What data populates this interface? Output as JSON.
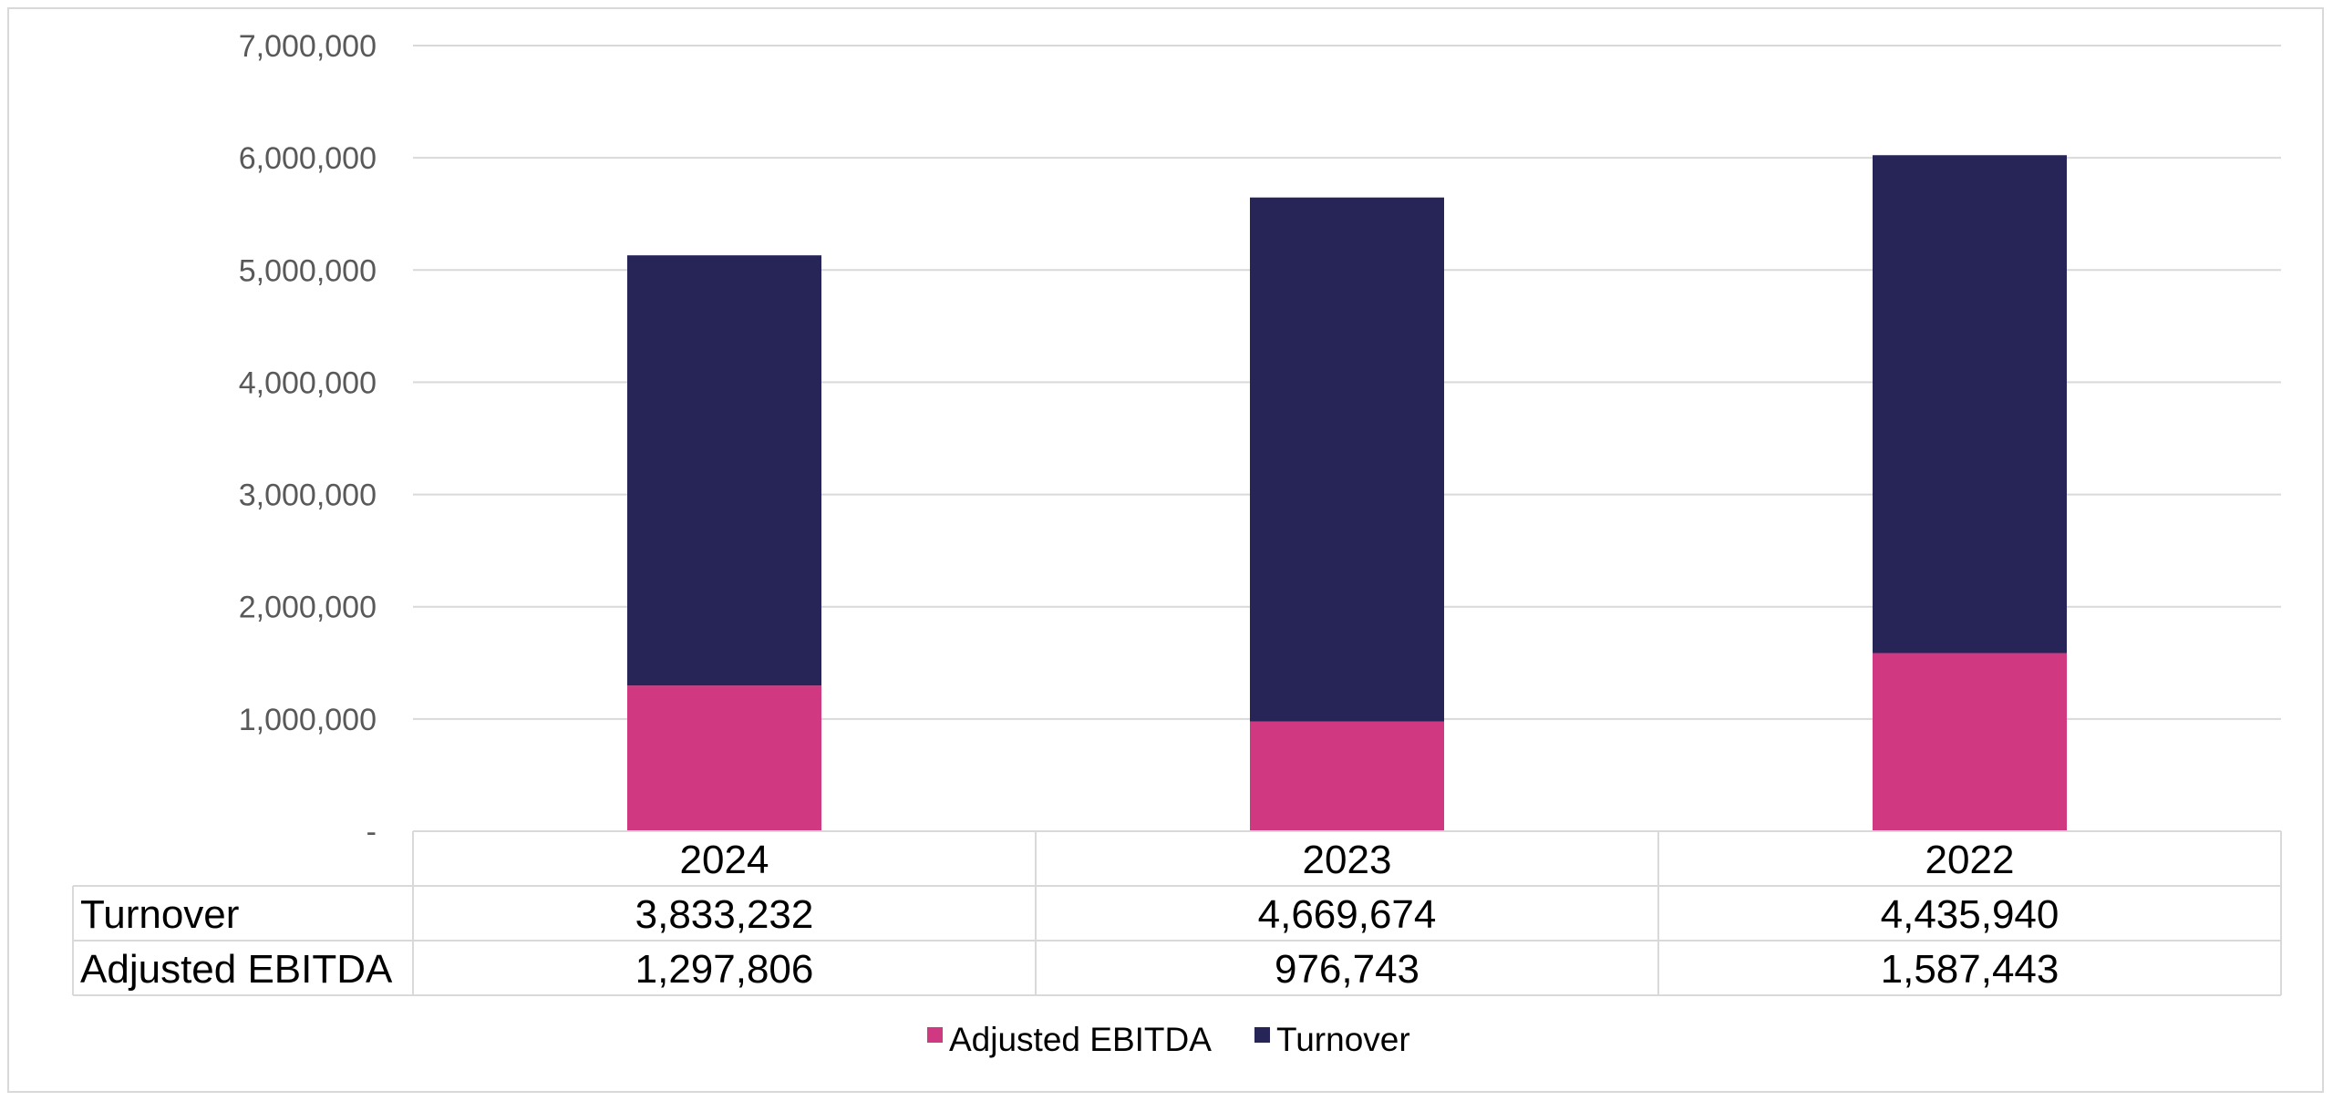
{
  "chart_data": {
    "type": "bar",
    "stacked": true,
    "categories": [
      "2024",
      "2023",
      "2022"
    ],
    "series": [
      {
        "name": "Adjusted EBITDA",
        "values": [
          1297806,
          976743,
          1587443
        ],
        "color": "#d13882"
      },
      {
        "name": "Turnover",
        "values": [
          3833232,
          4669674,
          4435940
        ],
        "color": "#272458"
      }
    ],
    "ylim": [
      0,
      7000000
    ],
    "yticks": [
      {
        "value": 0,
        "label": "-"
      },
      {
        "value": 1000000,
        "label": "1,000,000"
      },
      {
        "value": 2000000,
        "label": "2,000,000"
      },
      {
        "value": 3000000,
        "label": "3,000,000"
      },
      {
        "value": 4000000,
        "label": "4,000,000"
      },
      {
        "value": 5000000,
        "label": "5,000,000"
      },
      {
        "value": 6000000,
        "label": "6,000,000"
      },
      {
        "value": 7000000,
        "label": "7,000,000"
      }
    ],
    "grid": true,
    "legend": "bottom",
    "data_table": {
      "rows": [
        {
          "series": "Turnover",
          "cells": [
            "3,833,232",
            "4,669,674",
            "4,435,940"
          ]
        },
        {
          "series": "Adjusted EBITDA",
          "cells": [
            "1,297,806",
            "976,743",
            "1,587,443"
          ]
        }
      ]
    },
    "title": "",
    "xlabel": "",
    "ylabel": ""
  }
}
